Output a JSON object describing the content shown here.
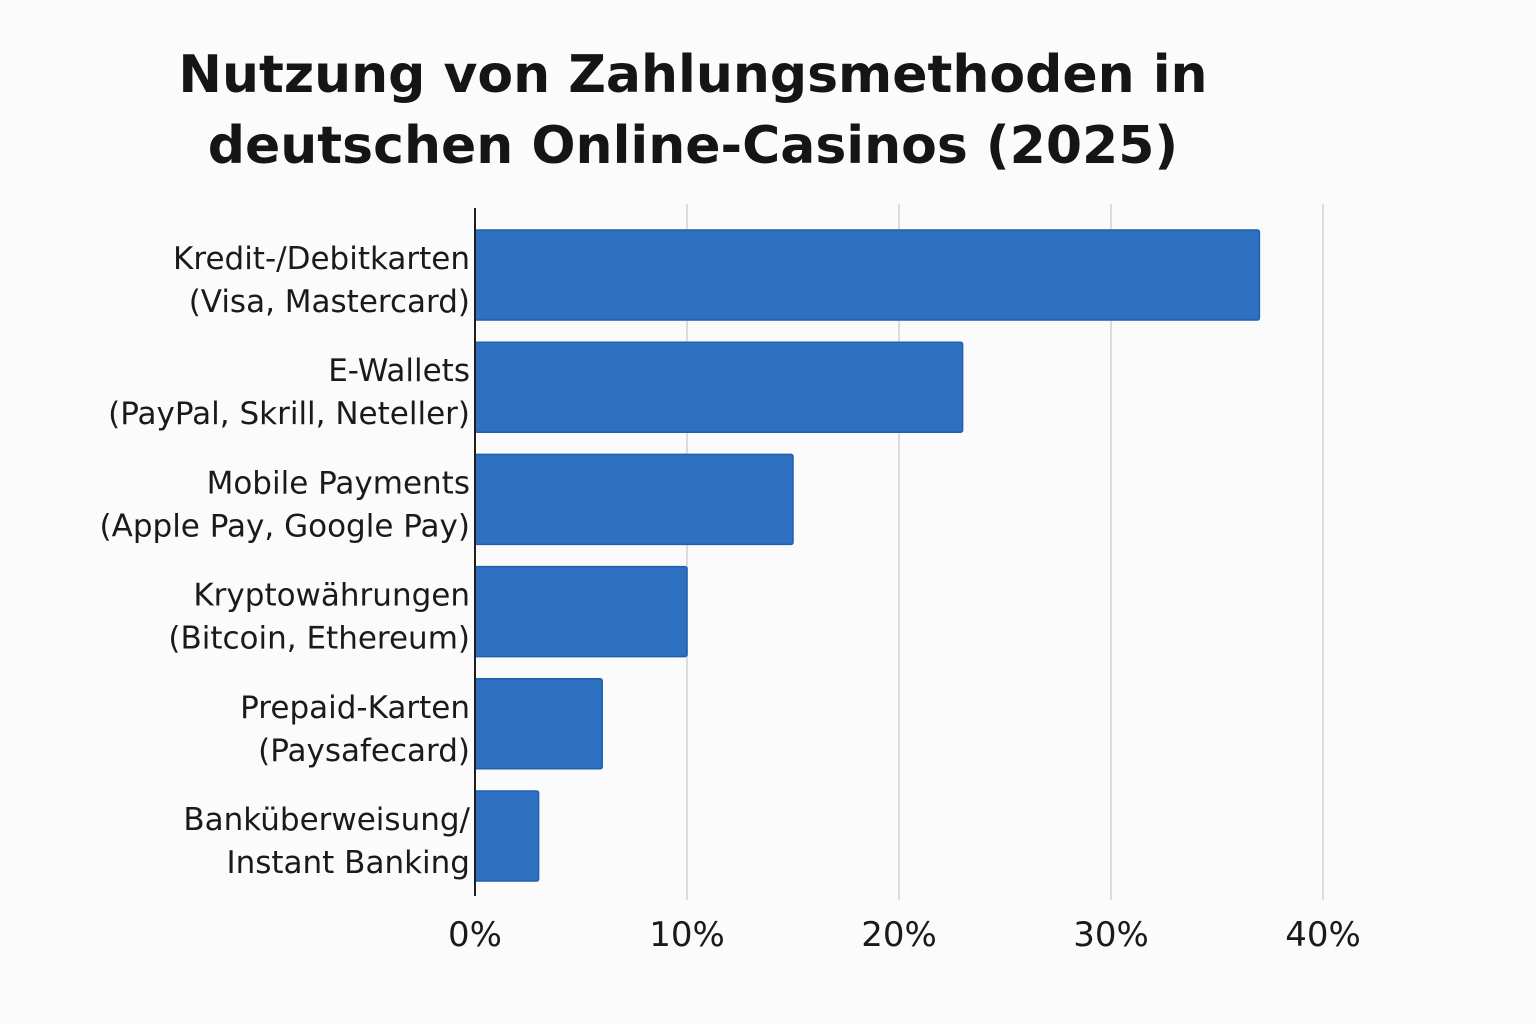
{
  "chart_data": {
    "type": "bar",
    "orientation": "horizontal",
    "title_lines": [
      "Nutzung von Zahlungsmethoden in",
      "deutschen Online-Casinos (2025)"
    ],
    "categories": [
      [
        "Kredit-/Debitkarten",
        "(Visa, Mastercard)"
      ],
      [
        "E-Wallets",
        "(PayPal, Skrill, Neteller)"
      ],
      [
        "Mobile Payments",
        "(Apple Pay, Google Pay)"
      ],
      [
        "Kryptowährungen",
        "(Bitcoin, Ethereum)"
      ],
      [
        "Prepaid-Karten",
        "(Paysafecard)"
      ],
      [
        "Banküberweisung/",
        "Instant Banking"
      ]
    ],
    "values": [
      37,
      23,
      15,
      10,
      6,
      3
    ],
    "xlim": [
      0,
      40
    ],
    "xticks": [
      0,
      10,
      20,
      30,
      40
    ],
    "xtick_labels": [
      "0%",
      "10%",
      "20%",
      "30%",
      "40%"
    ],
    "xlabel": "",
    "ylabel": "",
    "grid": "vertical",
    "legend": "none",
    "bar_color": "#2e71c1"
  }
}
